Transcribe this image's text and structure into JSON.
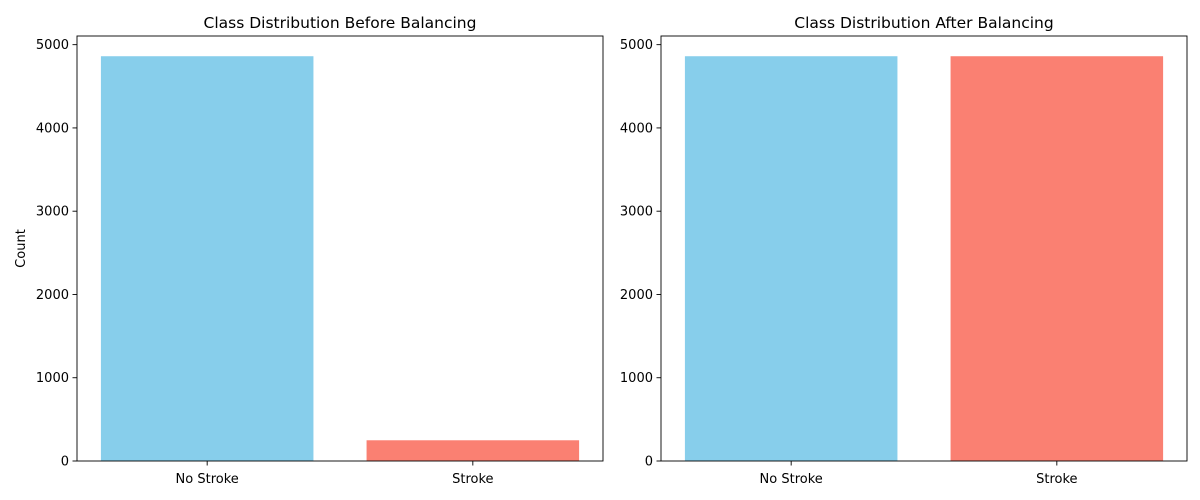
{
  "chart_data": [
    {
      "type": "bar",
      "title": "Class Distribution Before Balancing",
      "xlabel": "",
      "ylabel": "Count",
      "categories": [
        "No Stroke",
        "Stroke"
      ],
      "values": [
        4861,
        249
      ],
      "bar_colors": [
        "#87ceeb",
        "#fa8072"
      ],
      "ylim": [
        0,
        5104
      ],
      "yticks": [
        0,
        1000,
        2000,
        3000,
        4000,
        5000
      ],
      "grid": false
    },
    {
      "type": "bar",
      "title": "Class Distribution After Balancing",
      "xlabel": "",
      "ylabel": "",
      "categories": [
        "No Stroke",
        "Stroke"
      ],
      "values": [
        4861,
        4861
      ],
      "bar_colors": [
        "#87ceeb",
        "#fa8072"
      ],
      "ylim": [
        0,
        5104
      ],
      "yticks": [
        0,
        1000,
        2000,
        3000,
        4000,
        5000
      ],
      "grid": false
    }
  ]
}
